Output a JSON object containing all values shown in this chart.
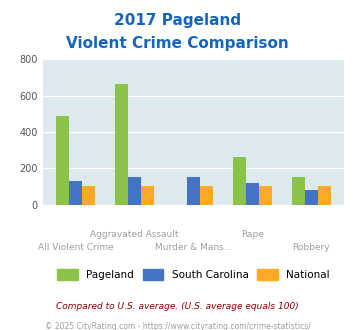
{
  "title_line1": "2017 Pageland",
  "title_line2": "Violent Crime Comparison",
  "categories": [
    "All Violent Crime",
    "Aggravated Assault",
    "Murder & Mans...",
    "Rape",
    "Robbery"
  ],
  "pageland": [
    490,
    665,
    0,
    265,
    150
  ],
  "south_carolina": [
    130,
    150,
    150,
    120,
    80
  ],
  "national": [
    100,
    100,
    100,
    100,
    100
  ],
  "pageland_color": "#8BC34A",
  "sc_color": "#4472C4",
  "national_color": "#FFA726",
  "bg_color": "#DCE9EE",
  "title_color": "#1565C0",
  "ylim": [
    0,
    800
  ],
  "yticks": [
    0,
    200,
    400,
    600,
    800
  ],
  "xlabel_color": "#9E9E9E",
  "note_text": "Compared to U.S. average. (U.S. average equals 100)",
  "footer_text": "© 2025 CityRating.com - https://www.cityrating.com/crime-statistics/",
  "note_color": "#8B0000",
  "footer_color": "#9E9E9E",
  "legend_labels": [
    "Pageland",
    "South Carolina",
    "National"
  ],
  "bar_width": 0.22,
  "grid_color": "#FFFFFF",
  "axes_label_color": "#9E9E9E"
}
